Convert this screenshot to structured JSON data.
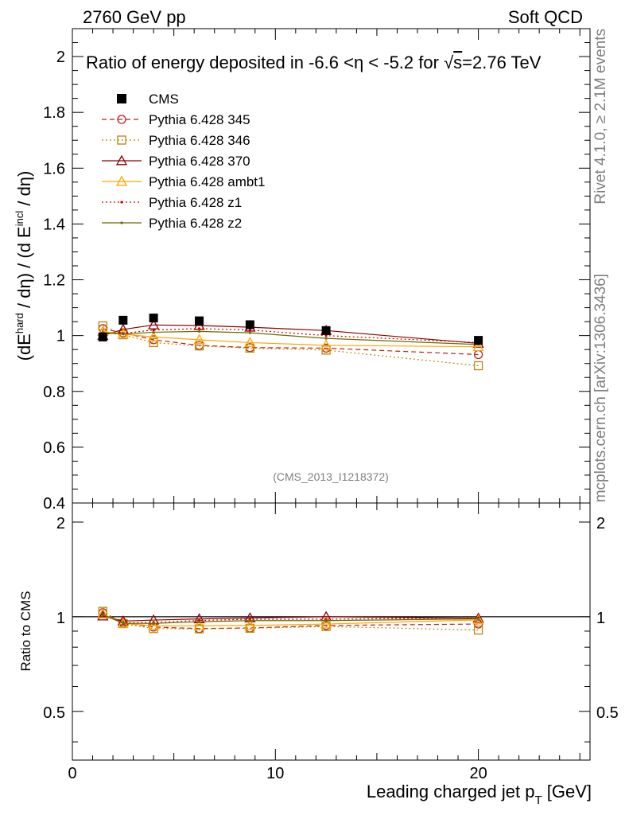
{
  "header": {
    "left": "2760 GeV pp",
    "right": "Soft QCD"
  },
  "side_labels": {
    "rivet": "Rivet 4.1.0, ≥ 2.1M events",
    "mcplots": "mcplots.cern.ch [arXiv:1306.3436]"
  },
  "watermark": "(CMS_2013_I1218372)",
  "chart_data": [
    {
      "type": "line",
      "panel": "main",
      "title": "Ratio of energy deposited in -6.6 <η < -5.2 for √s=2.76 TeV",
      "title_parts": {
        "pre": "Ratio of energy deposited in -6.6 <η < -5.2 for ",
        "root": "s",
        "post": "=2.76 TeV"
      },
      "ylabel": {
        "a": "(dE",
        "a_sup": "hard",
        "b": " / dη) / (d E",
        "b_sup": "incl",
        "c": " / dη)"
      },
      "xlabel": "",
      "xlim": [
        0,
        25.5
      ],
      "ylim": [
        0.4,
        2.1
      ],
      "x_ticks": [
        0,
        10,
        20
      ],
      "y_ticks": [
        0.4,
        0.6,
        0.8,
        1.0,
        1.2,
        1.4,
        1.6,
        1.8,
        2.0
      ],
      "y_tick_labels": [
        "0.4",
        "0.6",
        "0.8",
        "1",
        "1.2",
        "1.4",
        "1.6",
        "1.8",
        "2"
      ],
      "x": [
        1.5,
        2.5,
        4.0,
        6.25,
        8.75,
        12.5,
        20.0
      ],
      "series": [
        {
          "name": "CMS",
          "color": "#000000",
          "marker": "filled-square",
          "line": "none",
          "values": [
            0.995,
            1.055,
            1.063,
            1.053,
            1.039,
            1.018,
            0.983
          ]
        },
        {
          "name": "Pythia 6.428 345",
          "color": "#b22222",
          "marker": "open-circle",
          "line": "dashed",
          "values": [
            1.025,
            1.01,
            0.985,
            0.965,
            0.957,
            0.955,
            0.932
          ]
        },
        {
          "name": "Pythia 6.428 346",
          "color": "#b8860b",
          "marker": "open-square",
          "line": "dotted",
          "values": [
            1.035,
            1.003,
            0.975,
            0.963,
            0.955,
            0.948,
            0.892
          ]
        },
        {
          "name": "Pythia 6.428 370",
          "color": "#8b0000",
          "marker": "open-triangle",
          "line": "solid",
          "values": [
            1.0,
            1.022,
            1.038,
            1.036,
            1.03,
            1.018,
            0.972
          ]
        },
        {
          "name": "Pythia 6.428 ambt1",
          "color": "#ffa500",
          "marker": "open-triangle",
          "line": "solid",
          "values": [
            1.015,
            1.005,
            0.995,
            0.985,
            0.975,
            0.965,
            0.96
          ]
        },
        {
          "name": "Pythia 6.428 z1",
          "color": "#cc0000",
          "marker": "dot",
          "line": "dotted",
          "values": [
            1.01,
            1.008,
            1.02,
            1.025,
            1.02,
            1.0,
            0.975
          ]
        },
        {
          "name": "Pythia 6.428 z2",
          "color": "#6b6b00",
          "marker": "dot",
          "line": "solid",
          "values": [
            1.01,
            1.005,
            1.012,
            1.015,
            1.01,
            0.99,
            0.968
          ]
        }
      ]
    },
    {
      "type": "line",
      "panel": "ratio",
      "ylabel": "Ratio to CMS",
      "xlabel": "Leading charged jet p",
      "xlabel_sub": "T",
      "xlabel_post": " [GeV]",
      "xlim": [
        0,
        25.5
      ],
      "ylim": [
        0.35,
        2.3
      ],
      "yscale": "log",
      "x_ticks": [
        0,
        10,
        20
      ],
      "x_tick_labels": [
        "0",
        "10",
        "20"
      ],
      "y_ticks": [
        0.5,
        1,
        2
      ],
      "y_tick_labels": [
        "0.5",
        "1",
        "2"
      ],
      "x": [
        1.5,
        2.5,
        4.0,
        6.25,
        8.75,
        12.5,
        20.0
      ],
      "series": [
        {
          "name": "Pythia 6.428 345",
          "color": "#b22222",
          "marker": "open-circle",
          "line": "dashed",
          "values": [
            1.03,
            0.957,
            0.927,
            0.917,
            0.921,
            0.938,
            0.948
          ]
        },
        {
          "name": "Pythia 6.428 346",
          "color": "#b8860b",
          "marker": "open-square",
          "line": "dotted",
          "values": [
            1.04,
            0.951,
            0.917,
            0.915,
            0.919,
            0.931,
            0.907
          ]
        },
        {
          "name": "Pythia 6.428 370",
          "color": "#8b0000",
          "marker": "open-triangle",
          "line": "solid",
          "values": [
            1.005,
            0.969,
            0.976,
            0.984,
            0.991,
            1.0,
            0.989
          ]
        },
        {
          "name": "Pythia 6.428 ambt1",
          "color": "#ffa500",
          "marker": "open-triangle",
          "line": "solid",
          "values": [
            1.02,
            0.953,
            0.936,
            0.935,
            0.938,
            0.948,
            0.977
          ]
        },
        {
          "name": "Pythia 6.428 z1",
          "color": "#cc0000",
          "marker": "dot",
          "line": "dotted",
          "values": [
            1.015,
            0.956,
            0.96,
            0.973,
            0.982,
            0.982,
            0.992
          ]
        },
        {
          "name": "Pythia 6.428 z2",
          "color": "#6b6b00",
          "marker": "dot",
          "line": "solid",
          "values": [
            1.015,
            0.953,
            0.952,
            0.964,
            0.972,
            0.972,
            0.985
          ]
        }
      ]
    }
  ]
}
